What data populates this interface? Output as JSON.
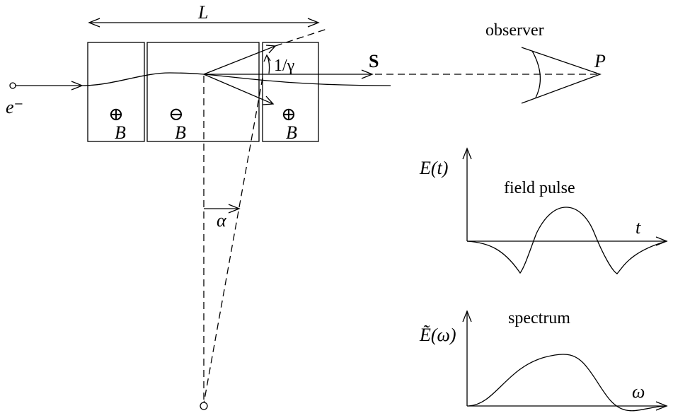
{
  "labels": {
    "length": "L",
    "electron": "e⁻",
    "field_left": "B",
    "field_middle": "B",
    "field_right": "B",
    "symbol_out": "⊕",
    "symbol_in": "⊖",
    "angle_gamma": "1/γ",
    "poynting": "S",
    "observer": "observer",
    "point": "P",
    "angle_alpha": "α",
    "field_axis": "E(t)",
    "field_caption": "field pulse",
    "time_axis": "t",
    "spectrum_axis": "Ẽ(ω)",
    "spectrum_caption": "spectrum",
    "freq_axis": "ω"
  }
}
